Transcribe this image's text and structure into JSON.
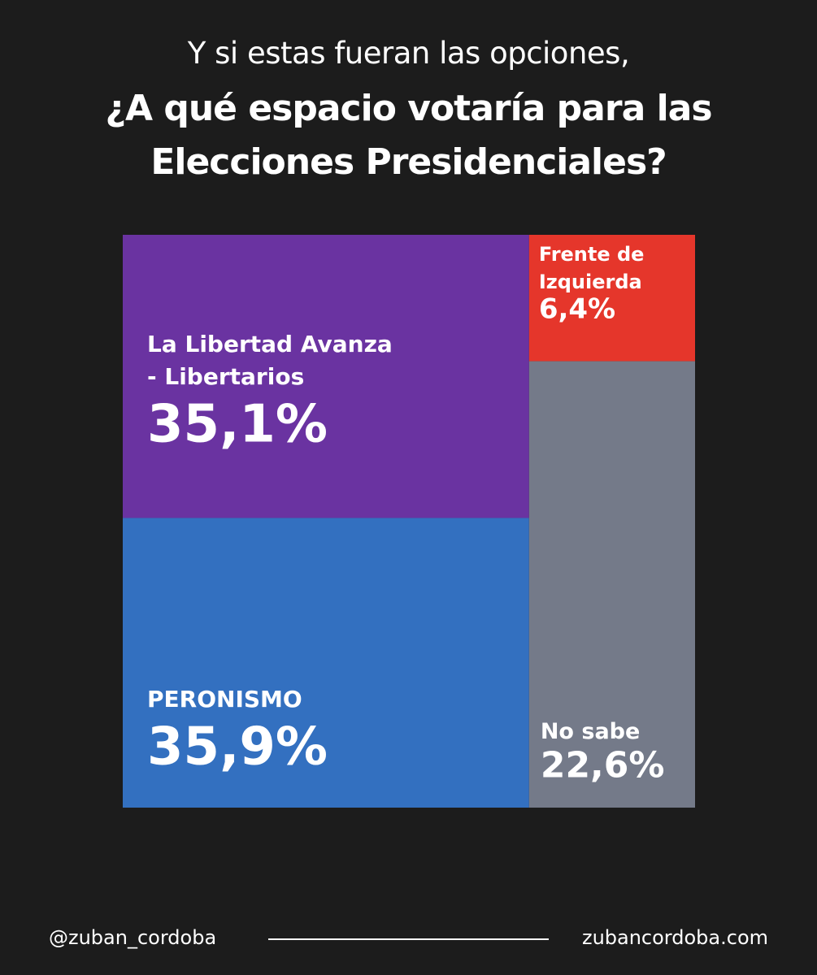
{
  "title": {
    "line1": "Y si estas fueran las opciones,",
    "line2": "¿A qué espacio votaría para las",
    "line3": "Elecciones Presidenciales?"
  },
  "chart_data": {
    "type": "treemap",
    "items": [
      {
        "key": "lla",
        "label_lines": [
          "La Libertad Avanza",
          "- Libertarios"
        ],
        "value": 35.1,
        "value_label": "35,1%",
        "color": "#6a33a1"
      },
      {
        "key": "peronismo",
        "label_lines": [
          "PERONISMO"
        ],
        "value": 35.9,
        "value_label": "35,9%",
        "color": "#3370c0"
      },
      {
        "key": "fit",
        "label_lines": [
          "Frente de",
          "Izquierda"
        ],
        "value": 6.4,
        "value_label": "6,4%",
        "color": "#e5362b"
      },
      {
        "key": "nosabe",
        "label_lines": [
          "No sabe"
        ],
        "value": 22.6,
        "value_label": "22,6%",
        "color": "#747a89"
      }
    ]
  },
  "footer": {
    "handle": "@zuban_cordoba",
    "website": "zubancordoba.com"
  }
}
